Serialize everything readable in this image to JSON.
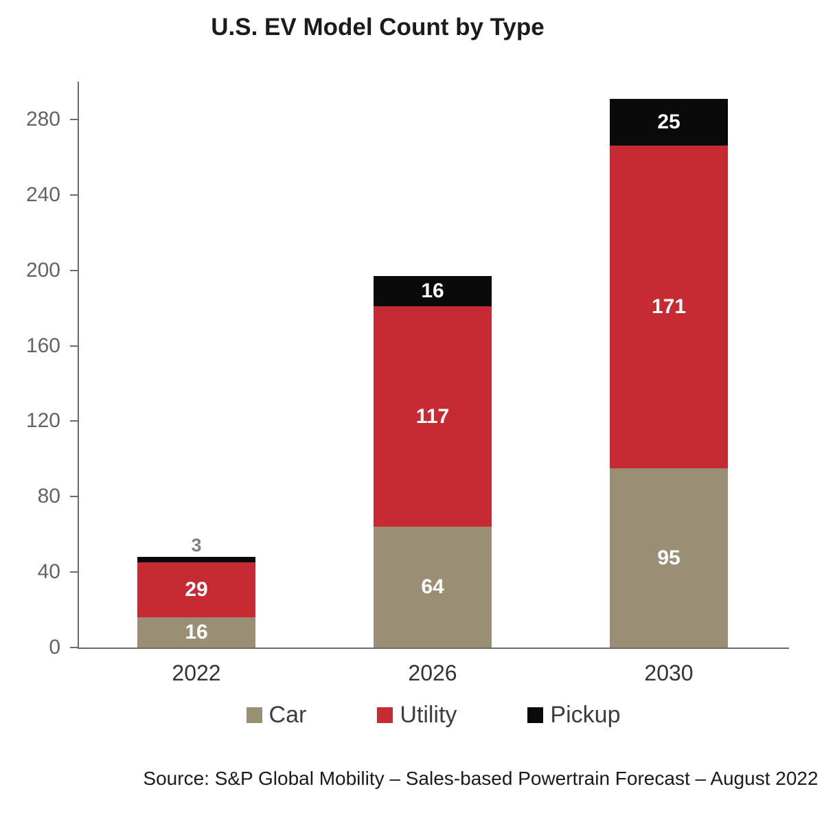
{
  "title": "U.S. EV Model Count by Type",
  "source_note": "Source: S&P Global Mobility – Sales-based Powertrain Forecast – August 2022",
  "chart_data": {
    "type": "bar",
    "subtype": "stacked",
    "title": "U.S. EV Model Count by Type",
    "categories": [
      "2022",
      "2026",
      "2030"
    ],
    "series": [
      {
        "name": "Car",
        "color": "#9a8f75",
        "values": [
          16,
          64,
          95
        ]
      },
      {
        "name": "Utility",
        "color": "#c62a32",
        "values": [
          29,
          117,
          171
        ]
      },
      {
        "name": "Pickup",
        "color": "#0a0a0a",
        "values": [
          3,
          16,
          25
        ]
      }
    ],
    "totals": [
      48,
      197,
      291
    ],
    "xlabel": "",
    "ylabel": "",
    "ylim": [
      0,
      300
    ],
    "yticks": [
      0,
      40,
      80,
      120,
      160,
      200,
      240,
      280
    ],
    "grid": false,
    "legend_position": "bottom",
    "value_label_inside_color": "#ffffff",
    "value_label_outside_color": "#7f7f7f",
    "axis_color": "#6a6a6a",
    "tick_label_color": "#636363"
  }
}
